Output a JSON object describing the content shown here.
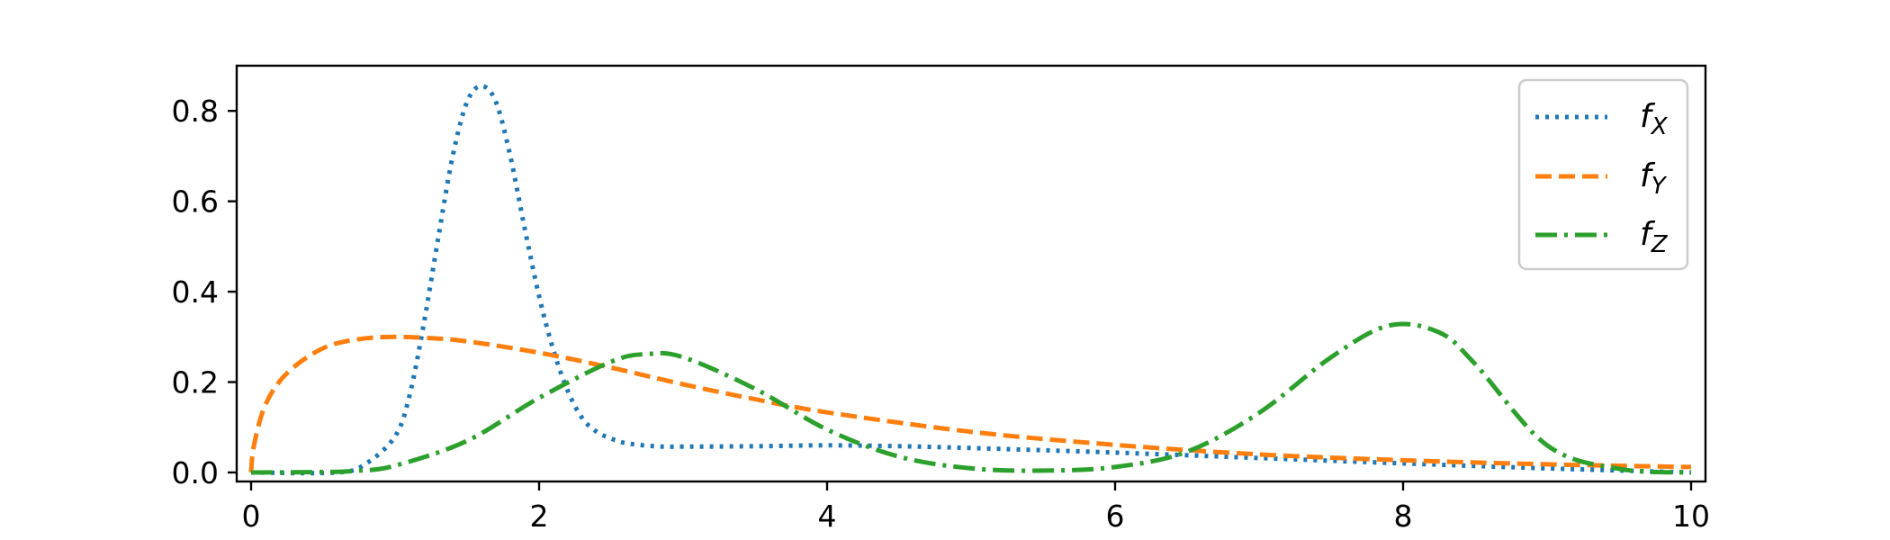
{
  "chart_data": {
    "type": "line",
    "xlim": [
      -0.1,
      10.1
    ],
    "ylim": [
      -0.02,
      0.9
    ],
    "xticks": [
      0,
      2,
      4,
      6,
      8,
      10
    ],
    "xtick_labels": [
      "0",
      "2",
      "4",
      "6",
      "8",
      "10"
    ],
    "yticks": [
      0.0,
      0.2,
      0.4,
      0.6,
      0.8
    ],
    "ytick_labels": [
      "0.0",
      "0.2",
      "0.4",
      "0.6",
      "0.8"
    ],
    "grid": false,
    "legend_position": "top-right",
    "series": [
      {
        "name": "f",
        "name_subscript": "X",
        "color": "#1f77b4",
        "linestyle": "dotted",
        "x": [
          0.0,
          0.6,
          0.8,
          1.0,
          1.1,
          1.2,
          1.3,
          1.4,
          1.5,
          1.6,
          1.7,
          1.8,
          1.9,
          2.0,
          2.1,
          2.2,
          2.3,
          2.4,
          2.5,
          2.6,
          2.8,
          3.0,
          3.5,
          4.0,
          4.5,
          5.0,
          6.0,
          7.0,
          8.0,
          9.0,
          10.0
        ],
        "y": [
          0.0,
          0.0,
          0.02,
          0.08,
          0.17,
          0.33,
          0.52,
          0.7,
          0.82,
          0.855,
          0.82,
          0.7,
          0.54,
          0.39,
          0.27,
          0.18,
          0.12,
          0.09,
          0.075,
          0.065,
          0.058,
          0.057,
          0.058,
          0.06,
          0.058,
          0.054,
          0.044,
          0.032,
          0.02,
          0.009,
          0.0
        ]
      },
      {
        "name": "f",
        "name_subscript": "Y",
        "color": "#ff7f0e",
        "linestyle": "dashed",
        "x": [
          0.0,
          0.02,
          0.1,
          0.25,
          0.5,
          0.75,
          1.0,
          1.25,
          1.5,
          2.0,
          2.5,
          3.0,
          3.5,
          4.0,
          5.0,
          6.0,
          7.0,
          8.0,
          9.0,
          10.0
        ],
        "y": [
          0.0,
          0.06,
          0.15,
          0.22,
          0.275,
          0.295,
          0.3,
          0.297,
          0.29,
          0.265,
          0.232,
          0.195,
          0.162,
          0.133,
          0.09,
          0.061,
          0.04,
          0.027,
          0.018,
          0.012
        ]
      },
      {
        "name": "f",
        "name_subscript": "Z",
        "color": "#2ca02c",
        "linestyle": "dashdot",
        "x": [
          0.0,
          0.5,
          0.75,
          1.0,
          1.5,
          2.0,
          2.5,
          2.75,
          3.0,
          3.5,
          4.0,
          4.5,
          5.0,
          5.5,
          6.0,
          6.5,
          7.0,
          7.5,
          7.9,
          8.25,
          8.5,
          9.0,
          9.5,
          10.0
        ],
        "y": [
          0.0,
          0.001,
          0.004,
          0.015,
          0.07,
          0.165,
          0.245,
          0.262,
          0.255,
          0.185,
          0.095,
          0.035,
          0.009,
          0.004,
          0.012,
          0.046,
          0.132,
          0.255,
          0.325,
          0.31,
          0.24,
          0.06,
          0.008,
          0.0
        ]
      }
    ]
  }
}
